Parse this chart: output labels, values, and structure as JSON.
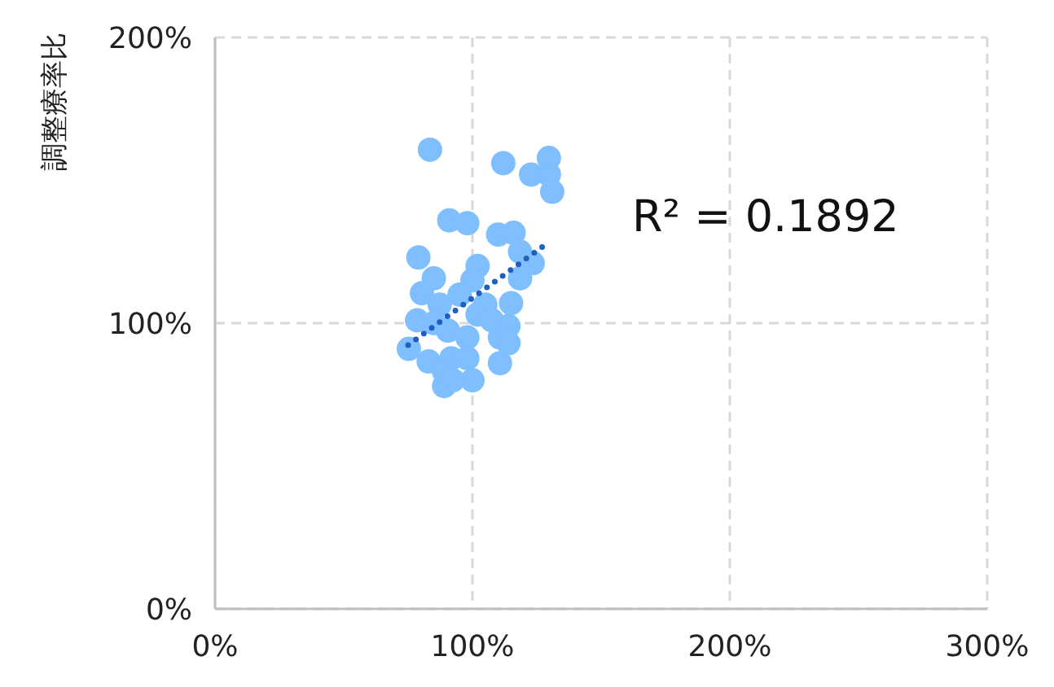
{
  "chart_data": {
    "type": "scatter",
    "ylabel": "調整療率比",
    "annotations": [
      "R² = 0.1892"
    ],
    "xlim": [
      0,
      300
    ],
    "ylim": [
      0,
      200
    ],
    "xticks": [
      {
        "value": 0,
        "label": "0%"
      },
      {
        "value": 100,
        "label": "100%"
      },
      {
        "value": 200,
        "label": "200%"
      },
      {
        "value": 300,
        "label": "300%"
      }
    ],
    "yticks": [
      {
        "value": 0,
        "label": "0%"
      },
      {
        "value": 100,
        "label": "100%"
      },
      {
        "value": 200,
        "label": "200%"
      }
    ],
    "grid": true,
    "marker": "circle",
    "series": [
      {
        "type": "scatter",
        "color": "#7fbfff",
        "x": [
          83.5,
          112,
          129.7,
          122.8,
          129.7,
          131,
          91,
          98,
          110,
          116,
          118.5,
          123.4,
          118.5,
          79,
          102,
          85,
          80.4,
          100,
          95,
          87.3,
          105,
          115,
          78.5,
          85,
          102,
          107.6,
          114,
          90.5,
          98,
          110.7,
          114,
          75.3,
          83,
          91.8,
          98,
          110.7,
          89,
          100,
          89,
          92.4
        ],
        "values": [
          160.7,
          156,
          157.8,
          152,
          152,
          146,
          136,
          135,
          131,
          131.6,
          125,
          121,
          115.7,
          123,
          120,
          115.7,
          110.5,
          115,
          110,
          106.5,
          106.5,
          107,
          101,
          100,
          103,
          101,
          99,
          97.4,
          95,
          95,
          93,
          91,
          86.6,
          87.7,
          87.7,
          86,
          83,
          80,
          78,
          80
        ]
      },
      {
        "type": "line",
        "color": "#1f5fbf",
        "line_style": "dotted",
        "marker": "none",
        "x": [
          75,
          128.5
        ],
        "values": [
          92.3,
          127.6
        ]
      }
    ]
  }
}
